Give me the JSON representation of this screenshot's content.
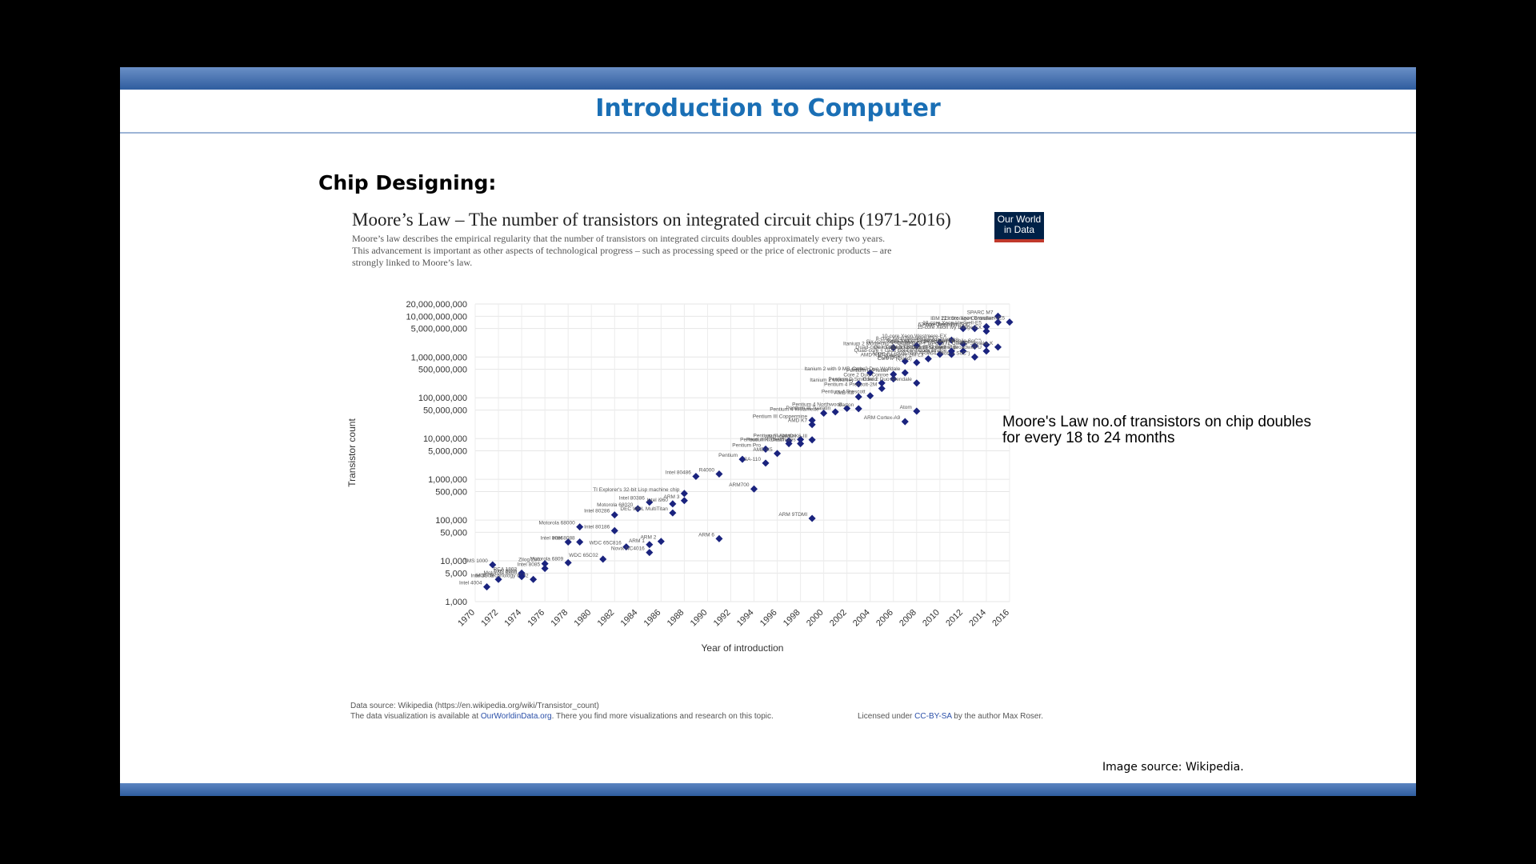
{
  "slide": {
    "title": "Introduction to Computer",
    "heading": "Chip Designing:",
    "note_line1": "Moore's Law no.of transistors on chip doubles",
    "note_line2": "for every 18 to 24 months",
    "image_source": "Image source:  Wikipedia."
  },
  "chart": {
    "title": "Moore’s Law – The number of transistors on integrated circuit chips (1971-2016)",
    "logo_line1": "Our World",
    "logo_line2": "in Data",
    "desc1": "Moore’s law describes the empirical regularity that the number of transistors on integrated circuits doubles approximately every two years.",
    "desc2": "This advancement is important as other aspects of technological progress – such as processing speed or the price of electronic products – are",
    "desc3": "strongly linked to Moore’s law.",
    "footer_source": "Data source: Wikipedia (https://en.wikipedia.org/wiki/Transistor_count)",
    "footer_viz_pre": "The data visualization is available at ",
    "footer_viz_link": "OurWorldinData.org",
    "footer_viz_post": ". There you find more visualizations and research on this topic.",
    "footer_license_pre": "Licensed under ",
    "footer_license_link": "CC-BY-SA",
    "footer_license_post": " by the author Max Roser."
  },
  "chart_data": {
    "type": "scatter",
    "xlabel": "Year of introduction",
    "ylabel": "Transistor count",
    "x_ticks": [
      1970,
      1972,
      1974,
      1976,
      1978,
      1980,
      1982,
      1984,
      1986,
      1988,
      1990,
      1992,
      1994,
      1996,
      1998,
      2000,
      2002,
      2004,
      2006,
      2008,
      2010,
      2012,
      2014,
      2016
    ],
    "y_ticks": [
      {
        "v": 1000,
        "label": "1,000"
      },
      {
        "v": 5000,
        "label": "5,000"
      },
      {
        "v": 10000,
        "label": "10,000"
      },
      {
        "v": 50000,
        "label": "50,000"
      },
      {
        "v": 100000,
        "label": "100,000"
      },
      {
        "v": 500000,
        "label": "500,000"
      },
      {
        "v": 1000000,
        "label": "1,000,000"
      },
      {
        "v": 5000000,
        "label": "5,000,000"
      },
      {
        "v": 10000000,
        "label": "10,000,000"
      },
      {
        "v": 50000000,
        "label": "50,000,000"
      },
      {
        "v": 100000000,
        "label": "100,000,000"
      },
      {
        "v": 500000000,
        "label": "500,000,000"
      },
      {
        "v": 1000000000,
        "label": "1,000,000,000"
      },
      {
        "v": 5000000000,
        "label": "5,000,000,000"
      },
      {
        "v": 10000000000,
        "label": "10,000,000,000"
      },
      {
        "v": 20000000000,
        "label": "20,000,000,000"
      }
    ],
    "xlim": [
      1970,
      2016
    ],
    "ylim": [
      1000,
      20000000000
    ],
    "log_y": true,
    "grid": true,
    "marker_color": "#1a237e",
    "points": [
      {
        "x": 1971,
        "y": 2300,
        "label": "Intel 4004"
      },
      {
        "x": 1972,
        "y": 3500,
        "label": "Intel 8008"
      },
      {
        "x": 1971.5,
        "y": 8000,
        "label": "TMS 1000"
      },
      {
        "x": 1974,
        "y": 4500,
        "label": "Intel 8080"
      },
      {
        "x": 1974,
        "y": 5000,
        "label": "RCA 1802"
      },
      {
        "x": 1975,
        "y": 3500,
        "label": "MOS Technology 6502"
      },
      {
        "x": 1976,
        "y": 6500,
        "label": "Intel 8085"
      },
      {
        "x": 1976,
        "y": 8500,
        "label": "Zilog Z80"
      },
      {
        "x": 1974,
        "y": 4100,
        "label": "Motorola 6800"
      },
      {
        "x": 1978,
        "y": 9000,
        "label": "Motorola 6809"
      },
      {
        "x": 1978,
        "y": 29000,
        "label": "Intel 8086"
      },
      {
        "x": 1979,
        "y": 29000,
        "label": "Intel 8088"
      },
      {
        "x": 1979,
        "y": 68000,
        "label": "Motorola 68000"
      },
      {
        "x": 1981,
        "y": 11000,
        "label": "WDC 65C02"
      },
      {
        "x": 1982,
        "y": 134000,
        "label": "Intel 80286"
      },
      {
        "x": 1982,
        "y": 55000,
        "label": "Intel 80186"
      },
      {
        "x": 1983,
        "y": 22000,
        "label": "WDC 65C816"
      },
      {
        "x": 1984,
        "y": 190000,
        "label": "Motorola 68020"
      },
      {
        "x": 1985,
        "y": 275000,
        "label": "Intel 80386"
      },
      {
        "x": 1985,
        "y": 25000,
        "label": "ARM 1"
      },
      {
        "x": 1985,
        "y": 16000,
        "label": "Novix NC4016"
      },
      {
        "x": 1986,
        "y": 30000,
        "label": "ARM 2"
      },
      {
        "x": 1987,
        "y": 250000,
        "label": "Intel i960"
      },
      {
        "x": 1987,
        "y": 150000,
        "label": "DEC WRL MultiTitan"
      },
      {
        "x": 1988,
        "y": 300000,
        "label": "ARM 3"
      },
      {
        "x": 1988,
        "y": 450000,
        "label": "TI Explorer's 32-bit Lisp machine chip"
      },
      {
        "x": 1989,
        "y": 1180000,
        "label": "Intel 80486"
      },
      {
        "x": 1991,
        "y": 1350000,
        "label": "R4000"
      },
      {
        "x": 1991,
        "y": 35000,
        "label": "ARM 6"
      },
      {
        "x": 1993,
        "y": 3100000,
        "label": "Pentium"
      },
      {
        "x": 1994,
        "y": 580000,
        "label": "ARM700"
      },
      {
        "x": 1995,
        "y": 5500000,
        "label": "Pentium Pro"
      },
      {
        "x": 1995,
        "y": 2500000,
        "label": "SA-110"
      },
      {
        "x": 1996,
        "y": 4300000,
        "label": "AMD K5"
      },
      {
        "x": 1997,
        "y": 8800000,
        "label": "AMD K6"
      },
      {
        "x": 1997,
        "y": 7500000,
        "label": "Pentium II Klamath"
      },
      {
        "x": 1998,
        "y": 7500000,
        "label": "Pentium II Deschutes"
      },
      {
        "x": 1998,
        "y": 9500000,
        "label": "Pentium III Katmai"
      },
      {
        "x": 1999,
        "y": 22000000,
        "label": "AMD K7"
      },
      {
        "x": 1999,
        "y": 28000000,
        "label": "Pentium III Coppermine"
      },
      {
        "x": 1999,
        "y": 110000,
        "label": "ARM 9TDMI"
      },
      {
        "x": 1999,
        "y": 9300000,
        "label": "AMD K6-III"
      },
      {
        "x": 2000,
        "y": 42000000,
        "label": "Pentium 4 Willamette"
      },
      {
        "x": 2001,
        "y": 45000000,
        "label": "Pentium III Tualatin"
      },
      {
        "x": 2002,
        "y": 55000000,
        "label": "Pentium 4 Northwood"
      },
      {
        "x": 2003,
        "y": 54000000,
        "label": "Barton"
      },
      {
        "x": 2003,
        "y": 105900000,
        "label": "AMD K8"
      },
      {
        "x": 2004,
        "y": 112000000,
        "label": "Pentium 4 Prescott"
      },
      {
        "x": 2003,
        "y": 220000000,
        "label": "Itanium 2 McKinley"
      },
      {
        "x": 2004,
        "y": 410000000,
        "label": "Itanium 2 with 9 MB cache"
      },
      {
        "x": 2005,
        "y": 169000000,
        "label": "Pentium 4 Prescott-2M"
      },
      {
        "x": 2005,
        "y": 230000000,
        "label": "Pentium D Smithfield"
      },
      {
        "x": 2006,
        "y": 291000000,
        "label": "Core 2 Duo Conroe"
      },
      {
        "x": 2006,
        "y": 1700000000,
        "label": "Itanium 2 Montecito"
      },
      {
        "x": 2006,
        "y": 376000000,
        "label": "Pentium D Presler"
      },
      {
        "x": 2007,
        "y": 789000000,
        "label": "POWER6"
      },
      {
        "x": 2007,
        "y": 410000000,
        "label": "Core 2 Duo Wolfdale"
      },
      {
        "x": 2008,
        "y": 47000000,
        "label": "Atom"
      },
      {
        "x": 2008,
        "y": 731000000,
        "label": "Core i7 (Quad)"
      },
      {
        "x": 2008,
        "y": 1900000000,
        "label": "Six-core Xeon 7400"
      },
      {
        "x": 2007,
        "y": 26000000,
        "label": "ARM Cortex-A9"
      },
      {
        "x": 2008,
        "y": 230000000,
        "label": "Core 2 Duo Allendale"
      },
      {
        "x": 2010,
        "y": 2300000000,
        "label": "8-core Xeon Nehalem-EX"
      },
      {
        "x": 2010,
        "y": 1170000000,
        "label": "Six-core Core i7"
      },
      {
        "x": 2011,
        "y": 2600000000,
        "label": "10-core Xeon Westmere-EX"
      },
      {
        "x": 2011,
        "y": 1160000000,
        "label": "Quad-core + GPU Core i7 Sandy Bridge"
      },
      {
        "x": 2012,
        "y": 2100000000,
        "label": "12-core POWER8"
      },
      {
        "x": 2012,
        "y": 1400000000,
        "label": "Quad-core + GPU Core i7 Ivy Bridge"
      },
      {
        "x": 2012,
        "y": 5000000000,
        "label": "62-core Xeon Phi"
      },
      {
        "x": 2013,
        "y": 5000000000,
        "label": "Xbox One main SoC"
      },
      {
        "x": 2013,
        "y": 1860000000,
        "label": "Quad-core + GPU Core i7 Haswell"
      },
      {
        "x": 2014,
        "y": 4310000000,
        "label": "15-core Xeon Ivy Bridge-EX"
      },
      {
        "x": 2014,
        "y": 5560000000,
        "label": "18-core Xeon Haswell-E5"
      },
      {
        "x": 2014,
        "y": 2000000000,
        "label": "Apple A8X (tri-core ARM64 \"mobile SoC\")"
      },
      {
        "x": 2015,
        "y": 10000000000,
        "label": "SPARC M7"
      },
      {
        "x": 2015,
        "y": 7100000000,
        "label": "IBM z13 Storage Controller"
      },
      {
        "x": 2016,
        "y": 7200000000,
        "label": "22-core Xeon Broadwell-E5"
      },
      {
        "x": 2015,
        "y": 1750000000,
        "label": "Quad-core + GPU GT2 Core i7 Skylake K"
      },
      {
        "x": 2013,
        "y": 1000000000,
        "label": "Apple A7 (dual-core ARM64 \"mobile SoC\")"
      },
      {
        "x": 2014,
        "y": 1400000000,
        "label": "Quad-core + GPU Core i7 Broadwell-U"
      },
      {
        "x": 2011,
        "y": 1400000000,
        "label": "Quad-core + GPU GT2 Core i7 Skylake"
      },
      {
        "x": 2009,
        "y": 904000000,
        "label": "AMD K10 quad-core 2M L3"
      }
    ]
  }
}
